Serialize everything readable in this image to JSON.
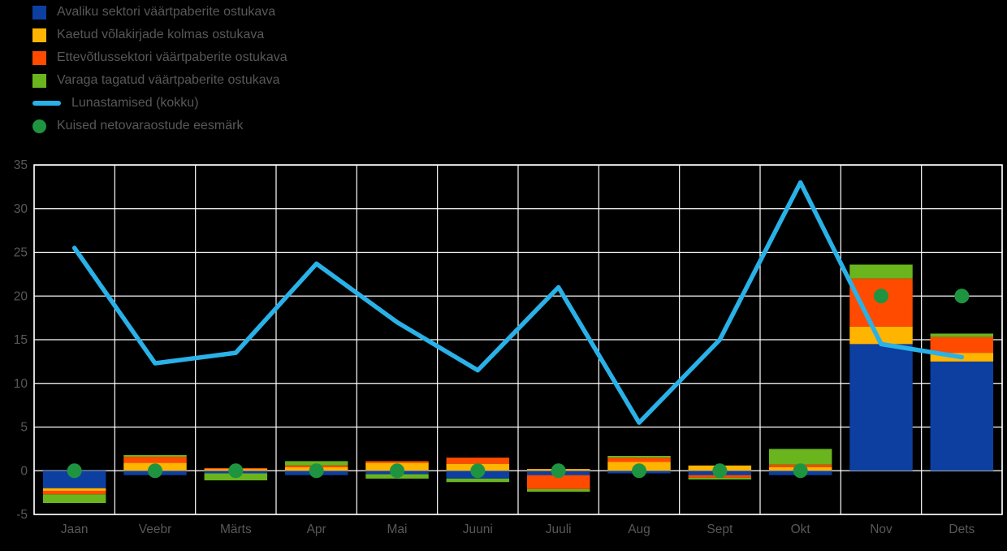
{
  "accent_colors": {
    "background": "#000000",
    "grid": "#ffffff",
    "text": "#585858"
  },
  "chart_data": {
    "type": "bar",
    "subtype": "stacked-bars-with-line-and-target-dots",
    "title": "",
    "xlabel": "",
    "ylabel": "",
    "ylim": [
      -5,
      35
    ],
    "ytick_step": 5,
    "grid": true,
    "legend_position": "top-left",
    "categories": [
      "Jaan",
      "Veebr",
      "Märts",
      "Apr",
      "Mai",
      "Juuni",
      "Juuli",
      "Aug",
      "Sept",
      "Okt",
      "Nov",
      "Dets"
    ],
    "bar_series": [
      {
        "name": "Avaliku sektori väärtpaberite ostukava",
        "color": "#0d3fa0",
        "values": [
          -2.0,
          -0.5,
          -0.3,
          -0.5,
          -0.4,
          -0.9,
          -0.5,
          -0.3,
          -0.5,
          -0.5,
          14.5,
          12.5
        ]
      },
      {
        "name": "Kaetud võlakirjade kolmas ostukava",
        "color": "#ffb400",
        "values": [
          -0.3,
          0.9,
          0.2,
          0.4,
          0.9,
          0.8,
          0.2,
          1.0,
          0.6,
          0.4,
          2.0,
          1.0
        ]
      },
      {
        "name": "Ettevõtlussektori väärtpaberite ostukava",
        "color": "#ff4b00",
        "values": [
          -0.4,
          0.7,
          0.1,
          0.2,
          0.2,
          0.7,
          -1.6,
          0.5,
          -0.3,
          0.3,
          5.5,
          1.8
        ]
      },
      {
        "name": "Varaga tagatud väärtpaberite ostukava",
        "color": "#6ab41d",
        "values": [
          -1.0,
          0.2,
          -0.8,
          0.5,
          -0.5,
          -0.4,
          -0.3,
          0.2,
          -0.2,
          1.8,
          1.6,
          0.4
        ]
      }
    ],
    "line_series": {
      "name": "Lunastamised (kokku)",
      "color": "#29b1e8",
      "values": [
        25.5,
        12.3,
        13.5,
        23.7,
        17.0,
        11.5,
        21.0,
        5.5,
        15.0,
        33.0,
        14.5,
        13.0
      ]
    },
    "dot_series": {
      "name": "Kuised netovaraostude eesmärk",
      "color": "#1e9440",
      "values": [
        0,
        0,
        0,
        0,
        0,
        0,
        0,
        0,
        0,
        0,
        20,
        20
      ]
    }
  }
}
